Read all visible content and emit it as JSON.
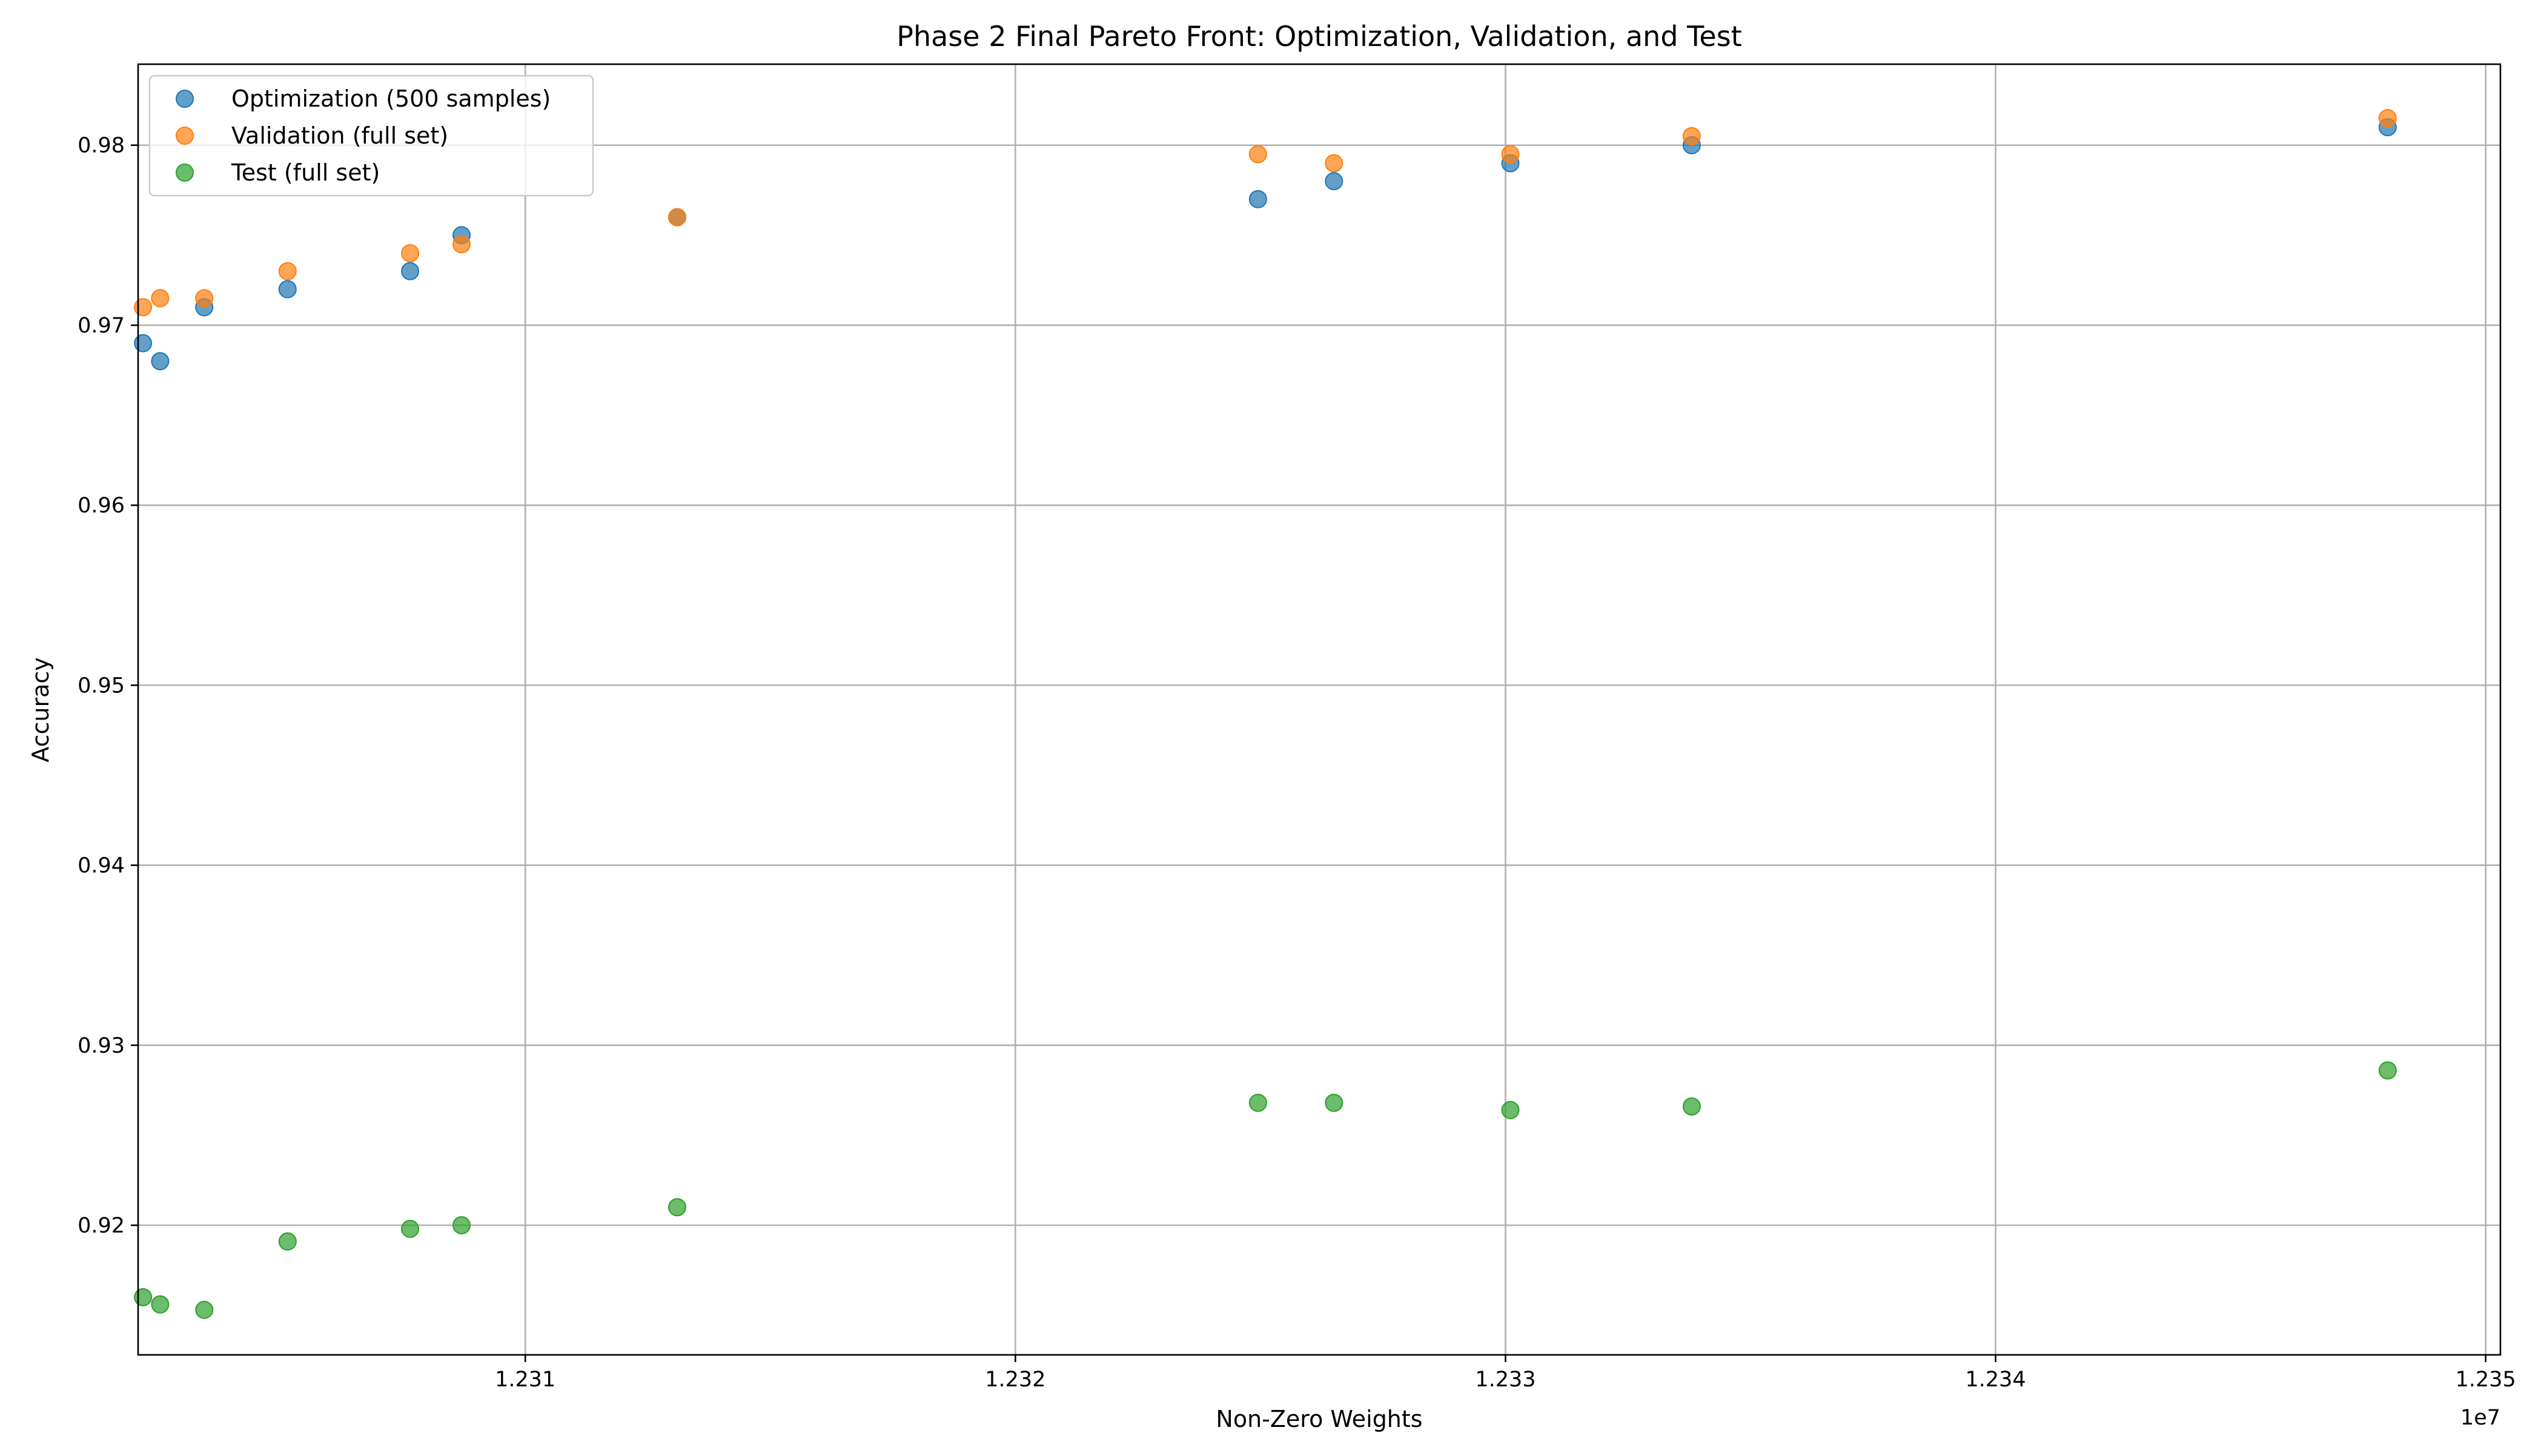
{
  "chart_data": {
    "type": "scatter",
    "title": "Phase 2 Final Pareto Front: Optimization, Validation, and Test",
    "xlabel": "Non-Zero Weights",
    "ylabel": "Accuracy",
    "x_offset_label": "1e7",
    "xlim": [
      12302100,
      12350300
    ],
    "ylim": [
      0.9128,
      0.9845
    ],
    "x_ticks": [
      12310000,
      12320000,
      12330000,
      12340000,
      12350000
    ],
    "x_tick_labels": [
      "1.231",
      "1.232",
      "1.233",
      "1.234",
      "1.235"
    ],
    "y_ticks": [
      0.92,
      0.93,
      0.94,
      0.95,
      0.96,
      0.97,
      0.98
    ],
    "y_tick_labels": [
      "0.92",
      "0.93",
      "0.94",
      "0.95",
      "0.96",
      "0.97",
      "0.98"
    ],
    "grid": true,
    "legend_position": "top-left",
    "series": [
      {
        "name": "Optimization (500 samples)",
        "color": "#1f77b4",
        "points": [
          {
            "x": 12302200,
            "y": 0.969
          },
          {
            "x": 12302550,
            "y": 0.968
          },
          {
            "x": 12303450,
            "y": 0.971
          },
          {
            "x": 12305150,
            "y": 0.972
          },
          {
            "x": 12307650,
            "y": 0.973
          },
          {
            "x": 12308700,
            "y": 0.975
          },
          {
            "x": 12313100,
            "y": 0.976
          },
          {
            "x": 12324950,
            "y": 0.977
          },
          {
            "x": 12326500,
            "y": 0.978
          },
          {
            "x": 12330100,
            "y": 0.979
          },
          {
            "x": 12333800,
            "y": 0.98
          },
          {
            "x": 12348000,
            "y": 0.981
          }
        ]
      },
      {
        "name": "Validation (full set)",
        "color": "#ff7f0e",
        "points": [
          {
            "x": 12302200,
            "y": 0.971
          },
          {
            "x": 12302550,
            "y": 0.9715
          },
          {
            "x": 12303450,
            "y": 0.9715
          },
          {
            "x": 12305150,
            "y": 0.973
          },
          {
            "x": 12307650,
            "y": 0.974
          },
          {
            "x": 12308700,
            "y": 0.9745
          },
          {
            "x": 12313100,
            "y": 0.976
          },
          {
            "x": 12324950,
            "y": 0.9795
          },
          {
            "x": 12326500,
            "y": 0.979
          },
          {
            "x": 12330100,
            "y": 0.9795
          },
          {
            "x": 12333800,
            "y": 0.9805
          },
          {
            "x": 12348000,
            "y": 0.9815
          }
        ]
      },
      {
        "name": "Test (full set)",
        "color": "#2ca02c",
        "points": [
          {
            "x": 12302200,
            "y": 0.916
          },
          {
            "x": 12302550,
            "y": 0.9156
          },
          {
            "x": 12303450,
            "y": 0.9153
          },
          {
            "x": 12305150,
            "y": 0.9191
          },
          {
            "x": 12307650,
            "y": 0.9198
          },
          {
            "x": 12308700,
            "y": 0.92
          },
          {
            "x": 12313100,
            "y": 0.921
          },
          {
            "x": 12324950,
            "y": 0.9268
          },
          {
            "x": 12326500,
            "y": 0.9268
          },
          {
            "x": 12330100,
            "y": 0.9264
          },
          {
            "x": 12333800,
            "y": 0.9266
          },
          {
            "x": 12348000,
            "y": 0.9286
          }
        ]
      }
    ]
  }
}
